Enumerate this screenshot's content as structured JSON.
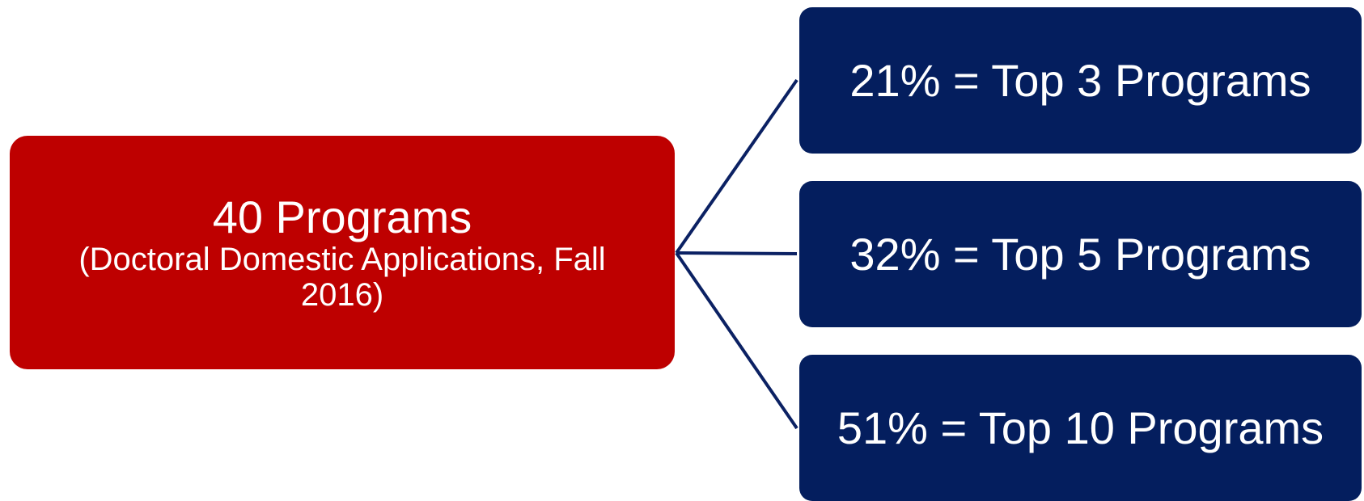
{
  "colors": {
    "root_fill": "#BE0000",
    "leaf_fill": "#041E5E",
    "connector": "#0B2163"
  },
  "root": {
    "title": "40 Programs",
    "subtitle": "(Doctoral Domestic Applications, Fall 2016)"
  },
  "leaves": [
    {
      "label": "21% = Top 3 Programs"
    },
    {
      "label": "32% = Top 5 Programs"
    },
    {
      "label": "51% = Top 10 Programs"
    }
  ]
}
